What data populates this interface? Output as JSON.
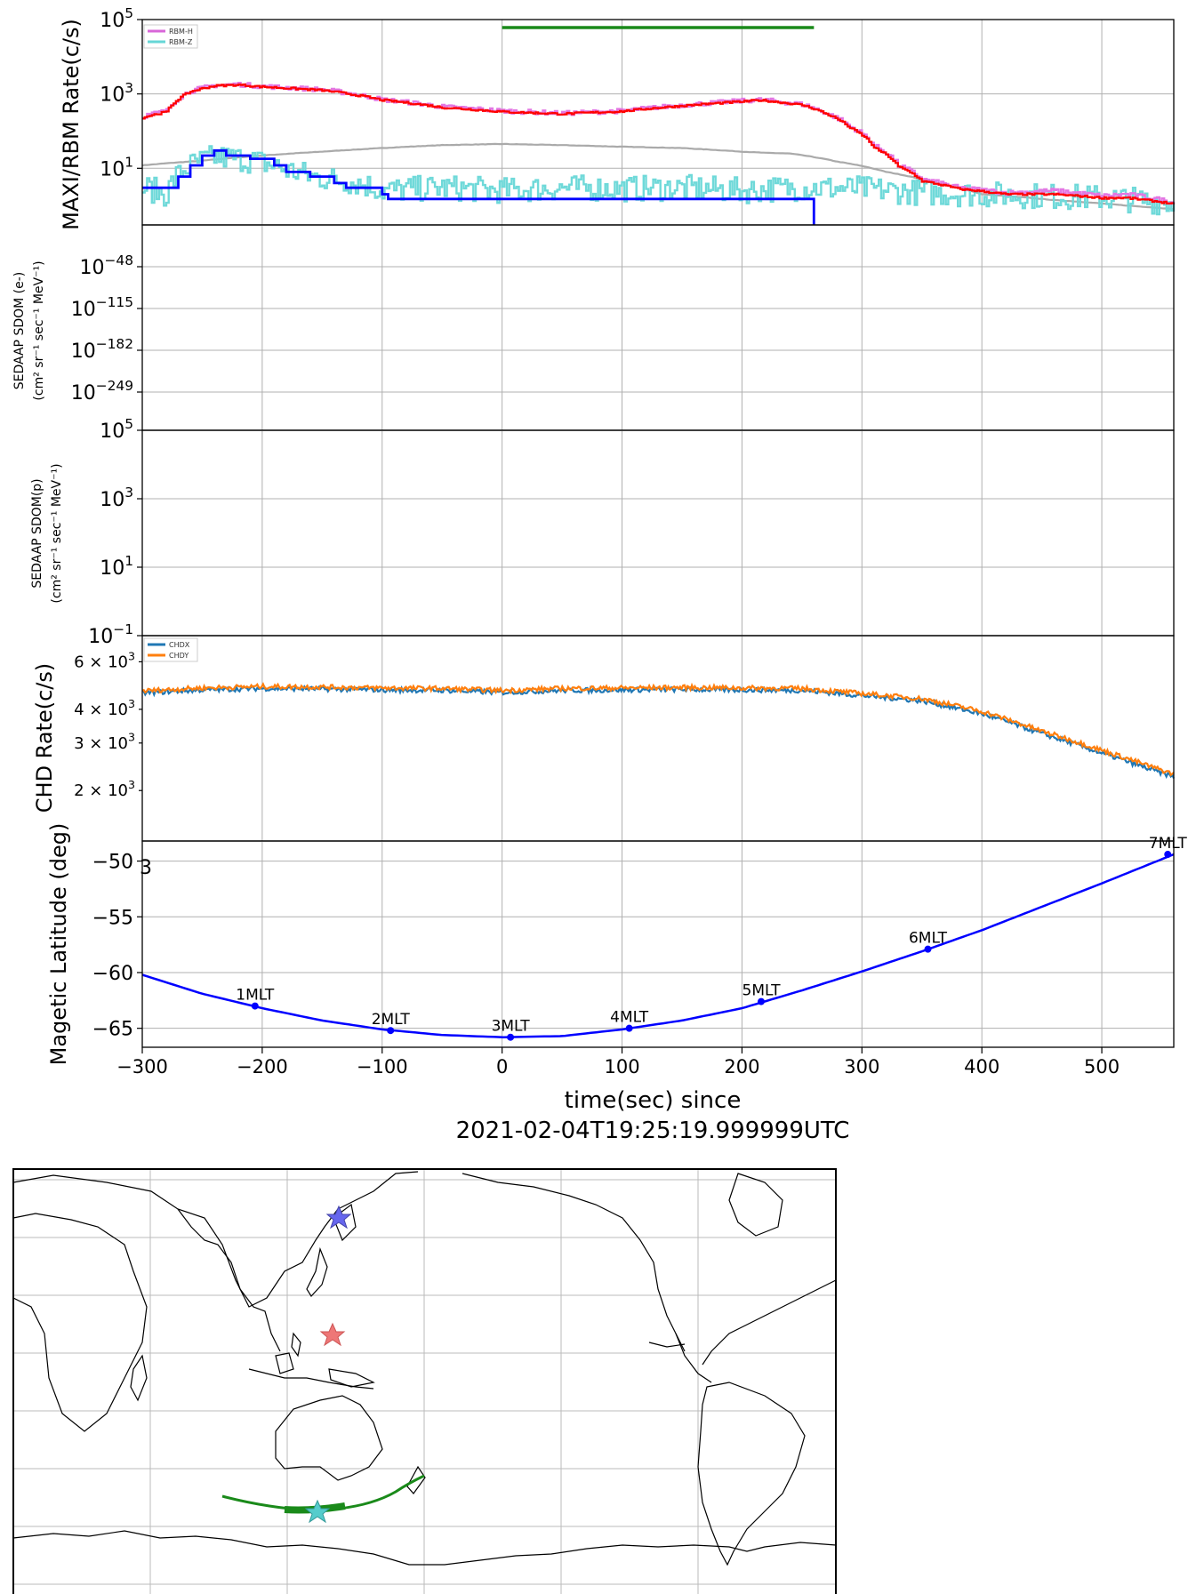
{
  "x_axis": {
    "label": "time(sec) since",
    "label2": "2021-02-04T19:25:19.999999UTC",
    "ticks": [
      -300,
      -200,
      -100,
      0,
      100,
      200,
      300,
      400,
      500
    ],
    "xlim": [
      -300,
      560
    ]
  },
  "chart_data": [
    {
      "type": "line",
      "panel": "rbm",
      "ylabel": "MAXI/RBM Rate(c/s)",
      "yscale": "log",
      "ylim": [
        0.3,
        100000
      ],
      "ytick_labels": [
        {
          "base": "10",
          "exp": "5",
          "value": 100000
        },
        {
          "base": "10",
          "exp": "3",
          "value": 1000
        },
        {
          "base": "10",
          "exp": "1",
          "value": 10
        }
      ],
      "legend": {
        "placement": "top-left",
        "entries": [
          {
            "name": "RBM-H",
            "color": "#d966d9"
          },
          {
            "name": "RBM-Z",
            "color": "#66d6d6"
          }
        ]
      },
      "green_bar": {
        "x": [
          0,
          260
        ],
        "y": 100000,
        "color": "#1a8a1a"
      },
      "series": [
        {
          "name": "RBM-H",
          "color": "#e377e3",
          "x": [
            -300,
            -280,
            -260,
            -240,
            -220,
            -200,
            -150,
            -100,
            -50,
            0,
            50,
            100,
            150,
            200,
            215,
            250,
            270,
            290,
            310,
            330,
            350,
            380,
            420,
            460,
            500,
            520,
            560
          ],
          "y": [
            250,
            350,
            1200,
            1700,
            1800,
            1600,
            1300,
            700,
            450,
            350,
            300,
            350,
            500,
            650,
            700,
            520,
            300,
            130,
            40,
            12,
            5,
            3,
            2.2,
            2.5,
            1.8,
            2,
            1.2
          ]
        },
        {
          "name": "RBM-Z",
          "color": "#6fd9d9",
          "x": [
            -300,
            -280,
            -260,
            -240,
            -220,
            -200,
            -180,
            -160,
            -140,
            -120,
            -100,
            -50,
            0,
            50,
            100,
            150,
            200,
            250,
            300,
            350,
            400,
            450,
            500,
            560
          ],
          "y": [
            3,
            2,
            12,
            20,
            18,
            14,
            9,
            6,
            5,
            4,
            2.5,
            3,
            2.5,
            3,
            2.8,
            3,
            2.5,
            3,
            2.8,
            2.2,
            2,
            1.8,
            1.6,
            1.2
          ]
        },
        {
          "name": "binned-total",
          "color": "#ff0000",
          "x": [
            -300,
            -280,
            -260,
            -240,
            -220,
            -200,
            -150,
            -100,
            -50,
            0,
            50,
            100,
            150,
            200,
            215,
            250,
            270,
            290,
            310,
            330,
            350,
            380,
            420,
            460,
            500,
            520,
            560
          ],
          "y": [
            230,
            330,
            1150,
            1650,
            1750,
            1550,
            1250,
            680,
            430,
            330,
            290,
            340,
            480,
            620,
            680,
            500,
            290,
            120,
            35,
            11,
            4.5,
            2.8,
            2,
            2,
            1.6,
            1.6,
            1.1
          ]
        },
        {
          "name": "binned-z",
          "color": "#0000ff",
          "step": true,
          "x": [
            -300,
            -280,
            -270,
            -260,
            -250,
            -240,
            -230,
            -210,
            -190,
            -180,
            -160,
            -140,
            -130,
            -100,
            -95,
            260
          ],
          "y": [
            3,
            3,
            6,
            12,
            22,
            30,
            22,
            18,
            12,
            8,
            6,
            4,
            3,
            2,
            1.5,
            1.5
          ]
        },
        {
          "name": "background",
          "color": "#aaaaaa",
          "x": [
            -300,
            -250,
            -200,
            -150,
            -100,
            -50,
            0,
            50,
            100,
            150,
            200,
            220,
            240,
            280,
            320,
            360,
            400,
            460,
            520,
            560
          ],
          "y": [
            12,
            16,
            22,
            28,
            35,
            42,
            45,
            42,
            38,
            35,
            28,
            26,
            25,
            15,
            8,
            4,
            2,
            1.4,
            1,
            0.8
          ]
        }
      ]
    },
    {
      "type": "line",
      "panel": "sdom-e",
      "ylabel": "SEDAAP SDOM (e-)",
      "ylabel2": "(cm² sr⁻¹ sec⁻¹ MeV⁻¹)",
      "yscale": "log",
      "ytick_labels": [
        {
          "base": "10",
          "exp": "−48"
        },
        {
          "base": "10",
          "exp": "−115"
        },
        {
          "base": "10",
          "exp": "−182"
        },
        {
          "base": "10",
          "exp": "−249"
        }
      ],
      "series": []
    },
    {
      "type": "line",
      "panel": "sdom-p",
      "ylabel": "SEDAAP SDOM(p)",
      "ylabel2": "(cm² sr⁻¹ sec⁻¹ MeV⁻¹)",
      "yscale": "log",
      "ylim": [
        0.1,
        100000
      ],
      "ytick_labels": [
        {
          "base": "10",
          "exp": "5",
          "value": 100000
        },
        {
          "base": "10",
          "exp": "3",
          "value": 1000
        },
        {
          "base": "10",
          "exp": "1",
          "value": 10
        },
        {
          "base": "10",
          "exp": "−1",
          "value": 0.1
        }
      ],
      "series": []
    },
    {
      "type": "line",
      "panel": "chd",
      "ylabel": "CHD Rate(c/s)",
      "yscale": "log",
      "ylim": [
        1300,
        7500
      ],
      "ytick_labels": [
        {
          "base": "6 × 10",
          "exp": "3",
          "value": 6000
        },
        {
          "base": "4 × 10",
          "exp": "3",
          "value": 4000
        },
        {
          "base": "3 × 10",
          "exp": "3",
          "value": 3000
        },
        {
          "base": "2 × 10",
          "exp": "3",
          "value": 2000
        }
      ],
      "legend": {
        "placement": "top-left",
        "entries": [
          {
            "name": "CHDX",
            "color": "#1f77b4"
          },
          {
            "name": "CHDY",
            "color": "#ff7f0e"
          }
        ]
      },
      "series": [
        {
          "name": "CHDX",
          "color": "#1f77b4",
          "x": [
            -300,
            -250,
            -200,
            -150,
            -100,
            -50,
            0,
            50,
            100,
            150,
            200,
            250,
            300,
            350,
            400,
            450,
            500,
            540,
            560
          ],
          "y": [
            4600,
            4720,
            4780,
            4760,
            4720,
            4700,
            4620,
            4700,
            4720,
            4740,
            4720,
            4700,
            4500,
            4300,
            3850,
            3250,
            2750,
            2400,
            2250
          ]
        },
        {
          "name": "CHDY",
          "color": "#ff7f0e",
          "x": [
            -300,
            -250,
            -200,
            -150,
            -100,
            -50,
            0,
            50,
            100,
            150,
            200,
            250,
            300,
            350,
            400,
            450,
            500,
            540,
            560
          ],
          "y": [
            4680,
            4800,
            4860,
            4840,
            4800,
            4780,
            4700,
            4780,
            4800,
            4820,
            4800,
            4780,
            4580,
            4380,
            3930,
            3320,
            2820,
            2460,
            2300
          ]
        }
      ]
    },
    {
      "type": "line",
      "panel": "mlat",
      "ylabel": "Magetic Latitude  (deg)",
      "ylim": [
        -66.7,
        -48.2
      ],
      "ytick_labels": [
        {
          "text": "−50",
          "value": -50
        },
        {
          "text": "−55",
          "value": -55
        },
        {
          "text": "−60",
          "value": -60
        },
        {
          "text": "−65",
          "value": -65
        }
      ],
      "top_overlap_label": "3",
      "series": [
        {
          "name": "track",
          "color": "#0000ff",
          "x": [
            -300,
            -250,
            -200,
            -150,
            -100,
            -50,
            0,
            50,
            100,
            150,
            200,
            250,
            300,
            350,
            400,
            450,
            500,
            560
          ],
          "y": [
            -60.2,
            -61.9,
            -63.2,
            -64.3,
            -65.1,
            -65.6,
            -65.8,
            -65.7,
            -65.1,
            -64.3,
            -63.2,
            -61.6,
            -59.9,
            -58.1,
            -56.2,
            -54.1,
            -52.0,
            -49.4
          ]
        }
      ],
      "annotations": [
        {
          "text": "1MLT",
          "x": -206,
          "y": -63.0
        },
        {
          "text": "2MLT",
          "x": -93,
          "y": -65.2
        },
        {
          "text": "3MLT",
          "x": 7,
          "y": -65.8
        },
        {
          "text": "4MLT",
          "x": 106,
          "y": -65.0
        },
        {
          "text": "5MLT",
          "x": 216,
          "y": -62.6
        },
        {
          "text": "6MLT",
          "x": 355,
          "y": -57.9
        },
        {
          "text": "7MLT",
          "x": 555,
          "y": -49.4
        }
      ]
    }
  ],
  "map": {
    "stars": [
      {
        "name": "blue-star",
        "color": "#6666ee"
      },
      {
        "name": "red-star",
        "color": "#ee7777"
      },
      {
        "name": "cyan-star",
        "color": "#55cccc"
      }
    ],
    "track_color": "#1a8a1a"
  }
}
